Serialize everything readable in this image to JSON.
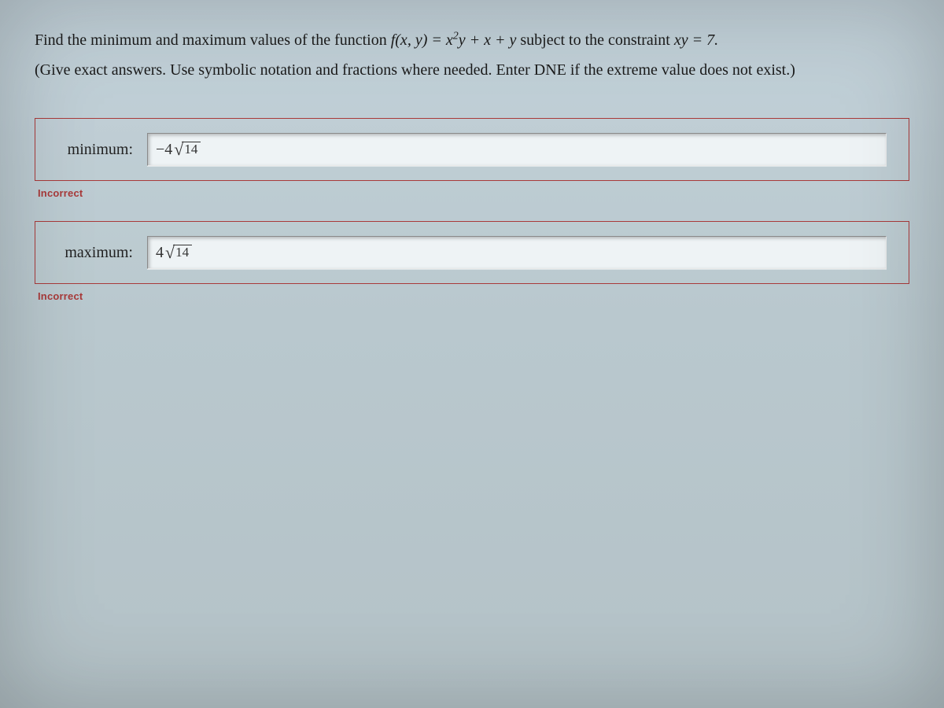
{
  "colors": {
    "error_border": "#a93a3a",
    "text": "#1b1b1b",
    "bg_top": "#c2d1d9",
    "bg_bottom": "#b4c2c7",
    "input_bg": "#eef3f5"
  },
  "question": {
    "line1_pre": "Find the minimum and maximum values of the function ",
    "func_lhs": "f(x, y) = x",
    "func_exp": "2",
    "func_rhs": "y + x + y",
    "line1_mid": " subject to the constraint ",
    "constraint": "xy = 7.",
    "line2": "(Give exact answers. Use symbolic notation and fractions where needed. Enter DNE if the extreme value does not exist.)"
  },
  "answers": {
    "minimum": {
      "label": "minimum:",
      "value_prefix": "−4",
      "value_radicand": "14",
      "status": "Incorrect"
    },
    "maximum": {
      "label": "maximum:",
      "value_prefix": "4",
      "value_radicand": "14",
      "status": "Incorrect"
    }
  }
}
